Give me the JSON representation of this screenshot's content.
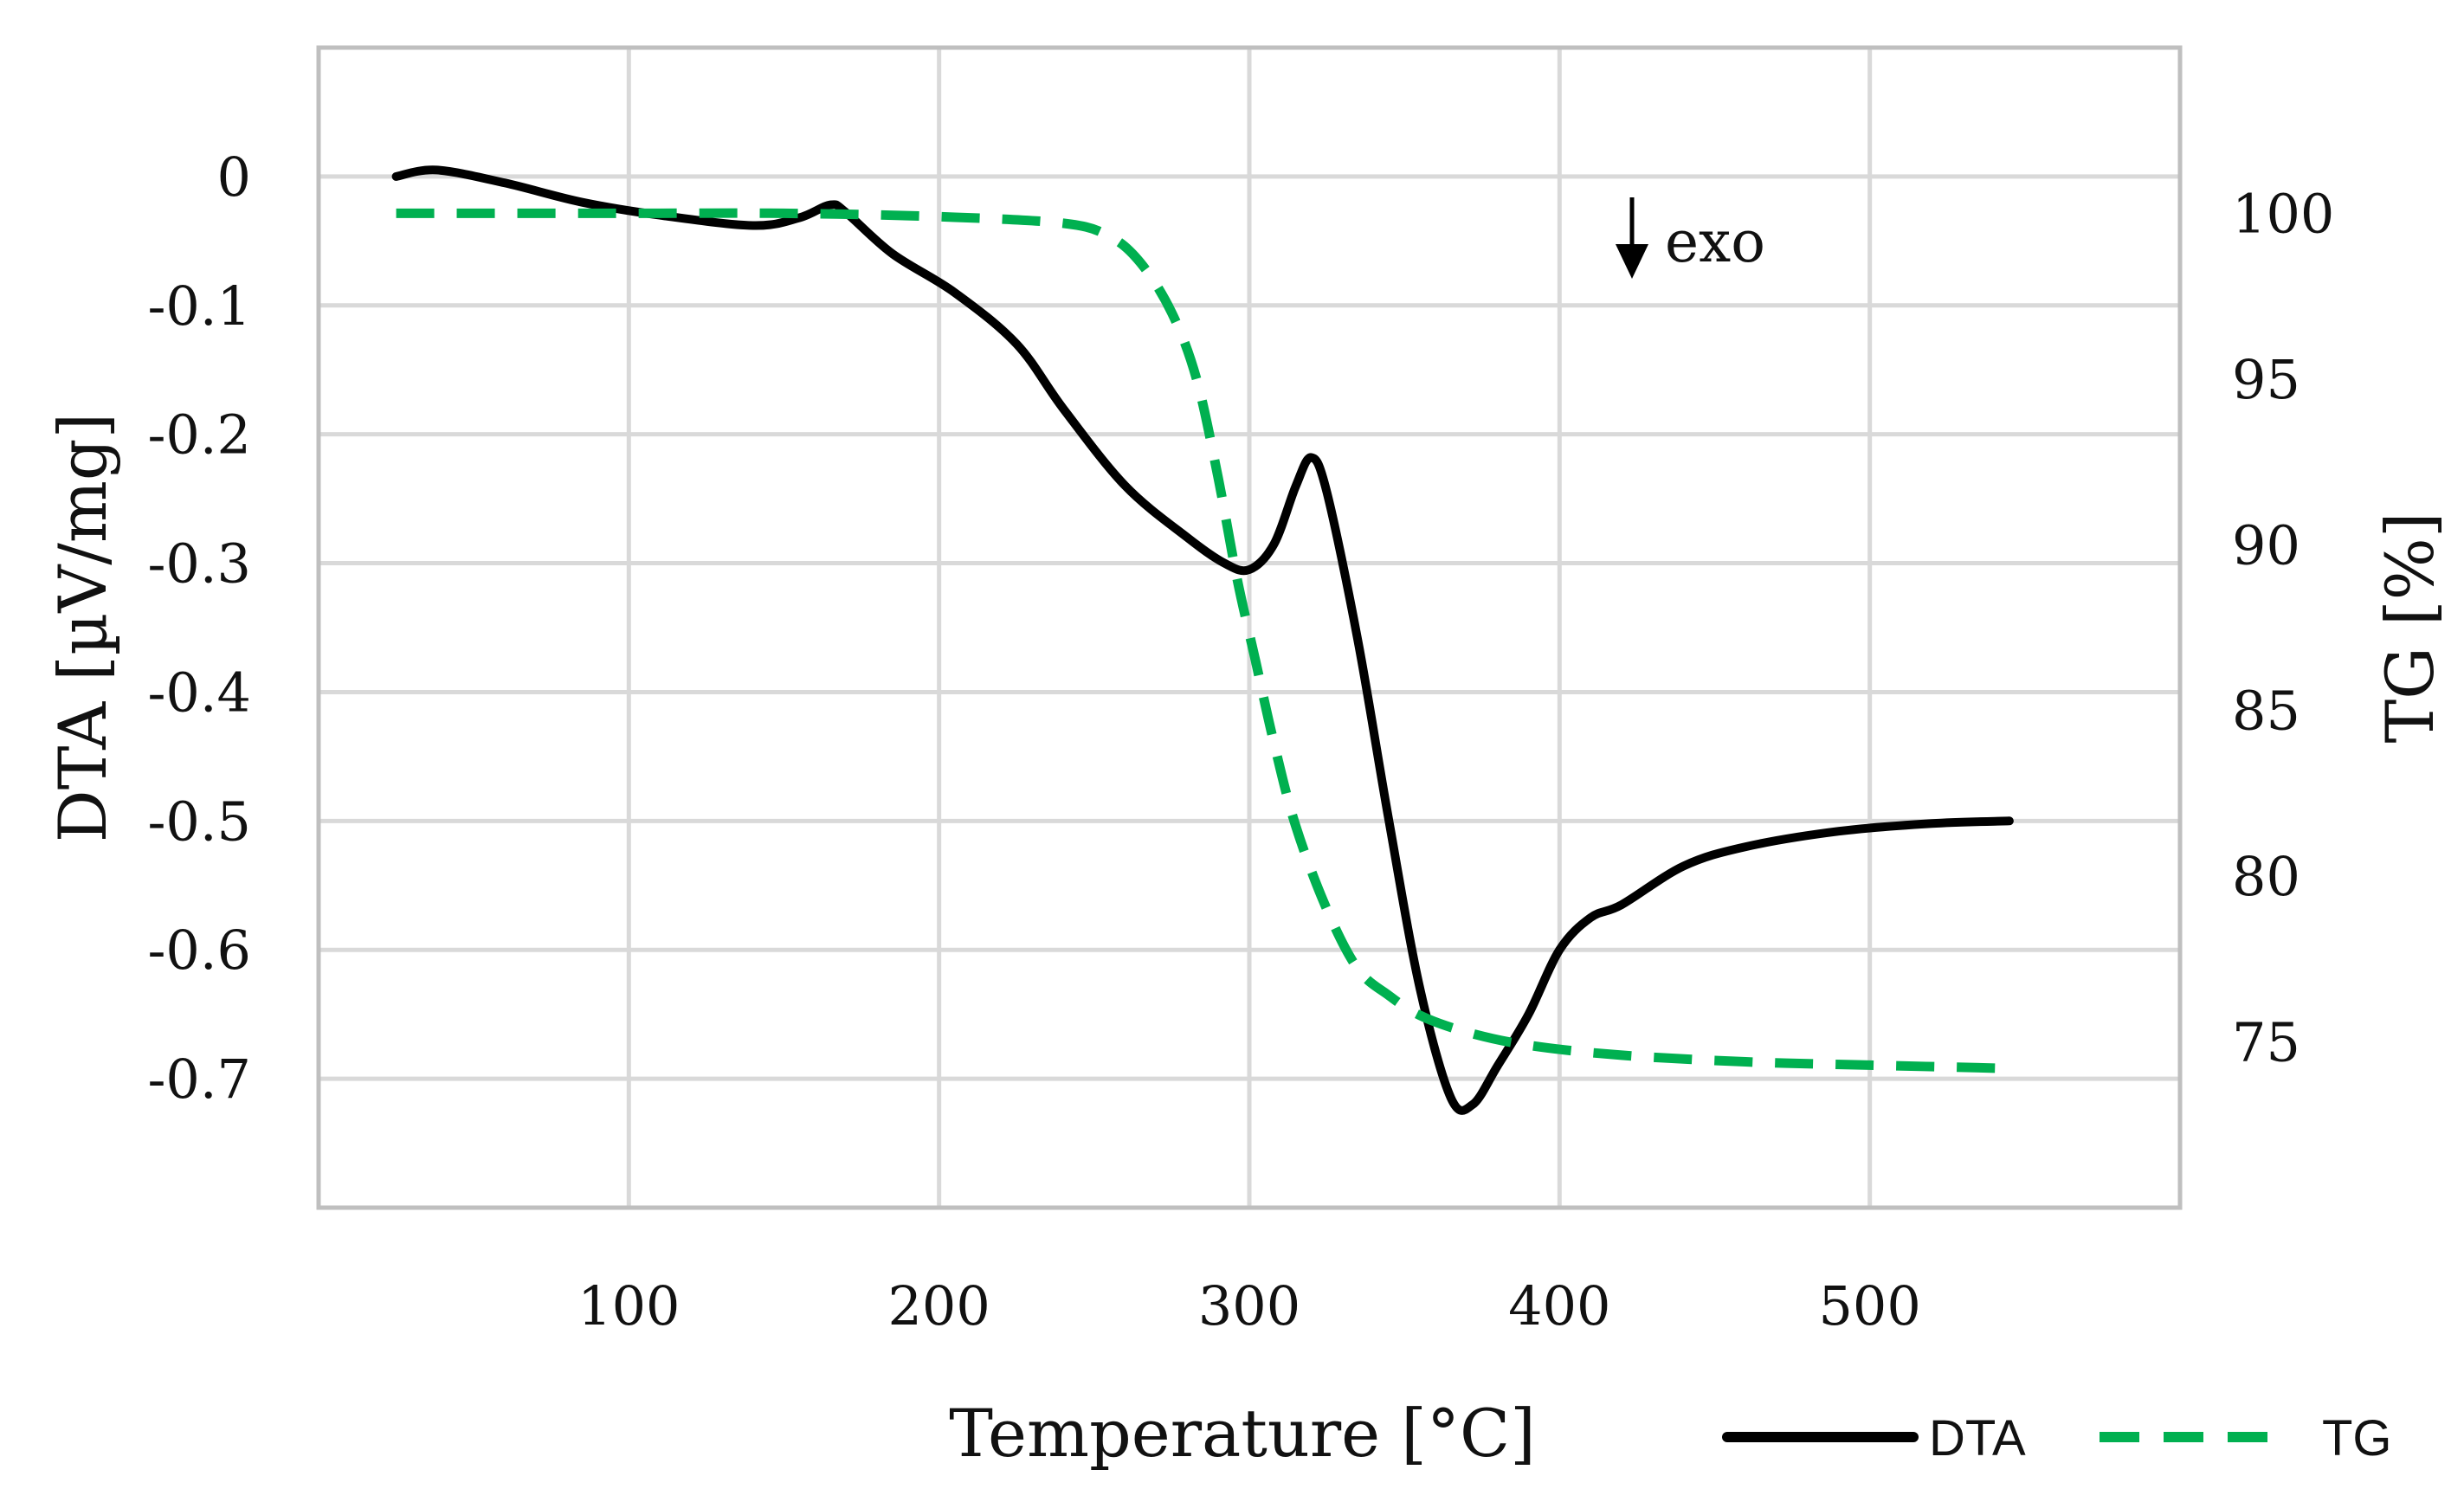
{
  "chart_data": {
    "type": "line",
    "title": "",
    "xlabel": "Temperature [°C]",
    "ylabel_left": "DTA [µV/mg]",
    "ylabel_right": "TG [%]",
    "xlim": [
      0,
      600
    ],
    "ylim_left": [
      -0.8,
      0.1
    ],
    "ylim_right": [
      70,
      105
    ],
    "xticks": [
      100,
      200,
      300,
      400,
      500
    ],
    "xtick_labels": [
      "100",
      "200",
      "300",
      "400",
      "500"
    ],
    "yticks_left": [
      0,
      -0.1,
      -0.2,
      -0.3,
      -0.4,
      -0.5,
      -0.6,
      -0.7
    ],
    "ytick_labels_left": [
      "0",
      "-0.1",
      "-0.2",
      "-0.3",
      "-0.4",
      "-0.5",
      "-0.6",
      "-0.7"
    ],
    "yticks_right": [
      100,
      95,
      90,
      85,
      80,
      75
    ],
    "ytick_labels_right": [
      "100",
      "95",
      "90",
      "85",
      "80",
      "75"
    ],
    "grid": true,
    "legend_position": "bottom-right",
    "annotation": {
      "text": "exo",
      "x": 433,
      "y_left": -0.055,
      "arrow": "down"
    },
    "series": [
      {
        "name": "DTA",
        "axis": "left",
        "color": "#000000",
        "style": "solid",
        "x": [
          25,
          38,
          60,
          85,
          110,
          140,
          155,
          165,
          170,
          185,
          205,
          225,
          240,
          260,
          280,
          292,
          300,
          308,
          315,
          320,
          325,
          335,
          345,
          355,
          365,
          372,
          380,
          390,
          400,
          410,
          420,
          440,
          460,
          490,
          520,
          545
        ],
        "y": [
          0.0,
          0.005,
          -0.005,
          -0.02,
          -0.03,
          -0.038,
          -0.032,
          -0.022,
          -0.028,
          -0.06,
          -0.09,
          -0.13,
          -0.18,
          -0.24,
          -0.28,
          -0.3,
          -0.305,
          -0.285,
          -0.24,
          -0.218,
          -0.245,
          -0.36,
          -0.5,
          -0.63,
          -0.715,
          -0.72,
          -0.69,
          -0.65,
          -0.6,
          -0.575,
          -0.565,
          -0.535,
          -0.52,
          -0.508,
          -0.502,
          -0.5
        ]
      },
      {
        "name": "TG",
        "axis": "right",
        "color": "#00b050",
        "style": "dashed",
        "x": [
          25,
          100,
          150,
          200,
          240,
          255,
          265,
          275,
          283,
          290,
          296,
          302,
          308,
          315,
          325,
          335,
          345,
          355,
          370,
          390,
          420,
          460,
          500,
          545
        ],
        "y": [
          100.0,
          100.0,
          100.0,
          99.9,
          99.7,
          99.3,
          98.5,
          97.0,
          95.0,
          92.0,
          89.0,
          86.5,
          84.0,
          81.5,
          79.0,
          77.2,
          76.4,
          75.8,
          75.3,
          74.9,
          74.6,
          74.4,
          74.3,
          74.2
        ]
      }
    ]
  }
}
